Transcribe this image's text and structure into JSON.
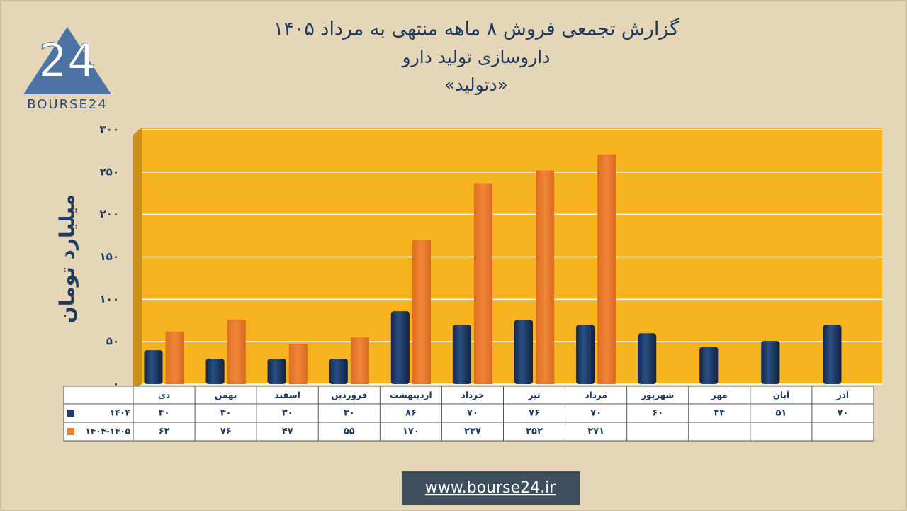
{
  "chart_data": {
    "type": "bar",
    "title": "گزارش تجمعی فروش ۸ ماهه منتهی به مرداد ۱۴۰۵",
    "subtitle": "داروسازی تولید دارو",
    "subtitle2": "«دتولید»",
    "y_label": "میلیارد تومان",
    "categories": [
      "دی",
      "بهمن",
      "اسفند",
      "فروردین",
      "اردیبهشت",
      "خرداد",
      "تیر",
      "مرداد",
      "شهریور",
      "مهر",
      "آبان",
      "آذر"
    ],
    "series": [
      {
        "name": "۱۴۰۴",
        "color": "#1f3d68",
        "values": [
          40,
          30,
          30,
          30,
          86,
          70,
          76,
          70,
          60,
          44,
          51,
          70
        ],
        "value_labels": [
          "۴۰",
          "۳۰",
          "۳۰",
          "۳۰",
          "۸۶",
          "۷۰",
          "۷۶",
          "۷۰",
          "۶۰",
          "۴۴",
          "۵۱",
          "۷۰"
        ]
      },
      {
        "name": "۱۴۰۴-۱۴۰۵",
        "color": "#ed7d31",
        "values": [
          62,
          76,
          47,
          55,
          170,
          237,
          252,
          271,
          null,
          null,
          null,
          null
        ],
        "value_labels": [
          "۶۲",
          "۷۶",
          "۴۷",
          "۵۵",
          "۱۷۰",
          "۲۳۷",
          "۲۵۲",
          "۲۷۱",
          null,
          null,
          null,
          null
        ]
      }
    ],
    "ylim": [
      0,
      300
    ],
    "yticks": [
      {
        "value": 0,
        "label": "۰"
      },
      {
        "value": 50,
        "label": "۵۰"
      },
      {
        "value": 100,
        "label": "۱۰۰"
      },
      {
        "value": 150,
        "label": "۱۵۰"
      },
      {
        "value": 200,
        "label": "۲۰۰"
      },
      {
        "value": 250,
        "label": "۲۵۰"
      },
      {
        "value": 300,
        "label": "۳۰۰"
      }
    ],
    "grid": true
  },
  "logo_text": "BOURSE24",
  "website": "www.bourse24.ir"
}
